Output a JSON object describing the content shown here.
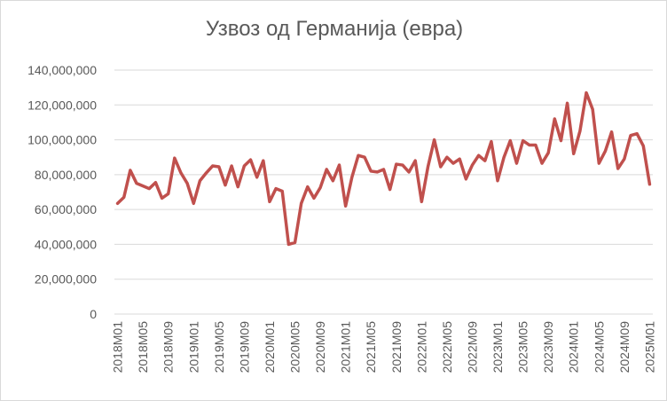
{
  "chart_data": {
    "type": "line",
    "title": "Узвоз од Германија (евра)",
    "xlabel": "",
    "ylabel": "",
    "ylim": [
      0,
      140000000
    ],
    "y_ticks": [
      {
        "value": 0,
        "label": "0"
      },
      {
        "value": 20000000,
        "label": "20,000,000"
      },
      {
        "value": 40000000,
        "label": "40,000,000"
      },
      {
        "value": 60000000,
        "label": "60,000,000"
      },
      {
        "value": 80000000,
        "label": "80,000,000"
      },
      {
        "value": 100000000,
        "label": "100,000,000"
      },
      {
        "value": 120000000,
        "label": "120,000,000"
      },
      {
        "value": 140000000,
        "label": "140,000,000"
      }
    ],
    "grid": true,
    "legend": "none",
    "line_color": "#c0504d",
    "x_tick_labels": [
      "2018M01",
      "2018M05",
      "2018M09",
      "2019M01",
      "2019M05",
      "2019M09",
      "2020M01",
      "2020M05",
      "2020M09",
      "2021M01",
      "2021M05",
      "2021M09",
      "2022M01",
      "2022M05",
      "2022M09",
      "2023M01",
      "2023M05",
      "2023M09",
      "2024M01",
      "2024M05",
      "2024M09",
      "2025M01"
    ],
    "x": [
      "2018M01",
      "2018M02",
      "2018M03",
      "2018M04",
      "2018M05",
      "2018M06",
      "2018M07",
      "2018M08",
      "2018M09",
      "2018M10",
      "2018M11",
      "2018M12",
      "2019M01",
      "2019M02",
      "2019M03",
      "2019M04",
      "2019M05",
      "2019M06",
      "2019M07",
      "2019M08",
      "2019M09",
      "2019M10",
      "2019M11",
      "2019M12",
      "2020M01",
      "2020M02",
      "2020M03",
      "2020M04",
      "2020M05",
      "2020M06",
      "2020M07",
      "2020M08",
      "2020M09",
      "2020M10",
      "2020M11",
      "2020M12",
      "2021M01",
      "2021M02",
      "2021M03",
      "2021M04",
      "2021M05",
      "2021M06",
      "2021M07",
      "2021M08",
      "2021M09",
      "2021M10",
      "2021M11",
      "2021M12",
      "2022M01",
      "2022M02",
      "2022M03",
      "2022M04",
      "2022M05",
      "2022M06",
      "2022M07",
      "2022M08",
      "2022M09",
      "2022M10",
      "2022M11",
      "2022M12",
      "2023M01",
      "2023M02",
      "2023M03",
      "2023M04",
      "2023M05",
      "2023M06",
      "2023M07",
      "2023M08",
      "2023M09",
      "2023M10",
      "2023M11",
      "2023M12",
      "2024M01",
      "2024M02",
      "2024M03",
      "2024M04",
      "2024M05",
      "2024M06",
      "2024M07",
      "2024M08",
      "2024M09",
      "2024M10",
      "2024M11",
      "2024M12",
      "2025M01"
    ],
    "values": [
      63500000,
      67000000,
      82500000,
      75000000,
      73500000,
      72000000,
      75500000,
      66500000,
      69000000,
      89500000,
      81000000,
      75000000,
      63500000,
      76500000,
      81000000,
      85000000,
      84500000,
      74000000,
      85000000,
      73000000,
      85000000,
      88500000,
      78500000,
      88000000,
      64500000,
      72000000,
      70500000,
      40000000,
      41000000,
      63500000,
      73000000,
      66500000,
      72500000,
      83000000,
      76500000,
      85500000,
      62000000,
      78500000,
      91000000,
      90000000,
      82000000,
      81500000,
      83000000,
      71500000,
      86000000,
      85500000,
      81500000,
      88000000,
      64500000,
      84500000,
      100000000,
      84500000,
      90000000,
      86500000,
      89000000,
      77500000,
      85500000,
      91000000,
      88000000,
      99000000,
      76500000,
      90000000,
      99500000,
      86500000,
      99500000,
      97000000,
      97000000,
      86500000,
      92500000,
      112000000,
      99500000,
      121000000,
      92000000,
      105000000,
      127000000,
      117500000,
      86500000,
      93500000,
      104500000,
      83500000,
      89000000,
      102500000,
      103500000,
      96500000,
      74500000
    ]
  }
}
